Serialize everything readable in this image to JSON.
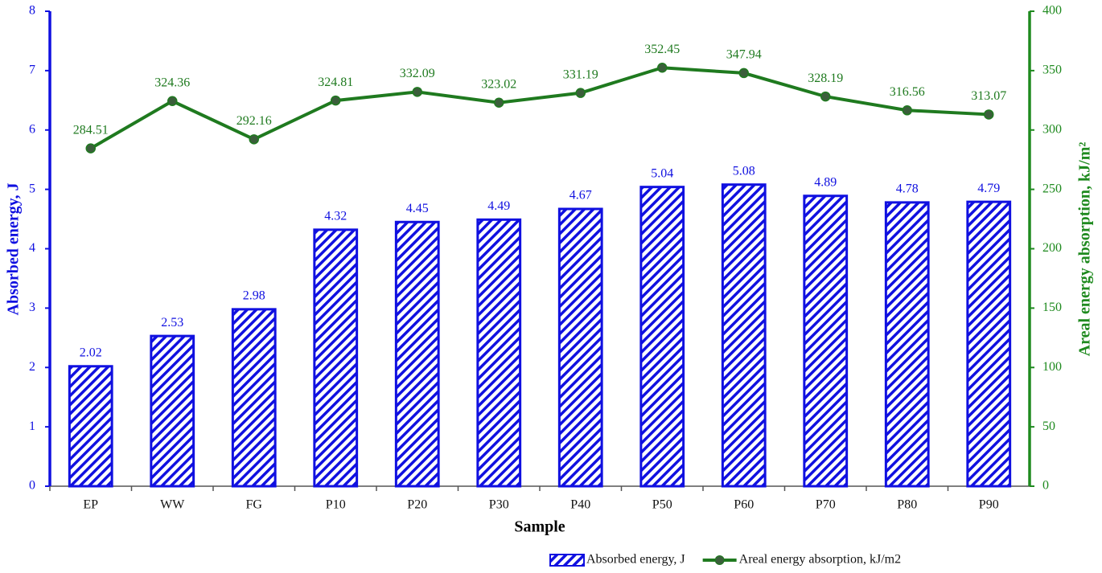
{
  "chart_data": {
    "type": "bar",
    "x_label": "Sample",
    "y_label": "Absorbed energy, J",
    "y2_label": "Areal energy absorption, kJ/m²",
    "categories": [
      "EP",
      "WW",
      "FG",
      "P10",
      "P20",
      "P30",
      "P40",
      "P50",
      "P60",
      "P70",
      "P80",
      "P90"
    ],
    "series": [
      {
        "name": "Absorbed energy, J",
        "type": "bar",
        "color": "#1010e0",
        "values": [
          2.02,
          2.53,
          2.98,
          4.32,
          4.45,
          4.49,
          4.67,
          5.04,
          5.08,
          4.89,
          4.78,
          4.79
        ]
      },
      {
        "name": "Areal energy absorption, kJ/m2",
        "type": "line",
        "axis": "y2",
        "color": "#1f7a1f",
        "values": [
          284.51,
          324.36,
          292.16,
          324.81,
          332.09,
          323.02,
          331.19,
          352.45,
          347.94,
          328.19,
          316.56,
          313.07
        ]
      }
    ],
    "ylim": [
      0,
      8
    ],
    "yticks": [
      0,
      1,
      2,
      3,
      4,
      5,
      6,
      7,
      8
    ],
    "y2lim": [
      0,
      400
    ],
    "y2ticks": [
      0,
      50,
      100,
      150,
      200,
      250,
      300,
      350,
      400
    ],
    "y_color": "#1010e0",
    "y2_color": "#1f8a1f",
    "legend": "bottom-right"
  }
}
